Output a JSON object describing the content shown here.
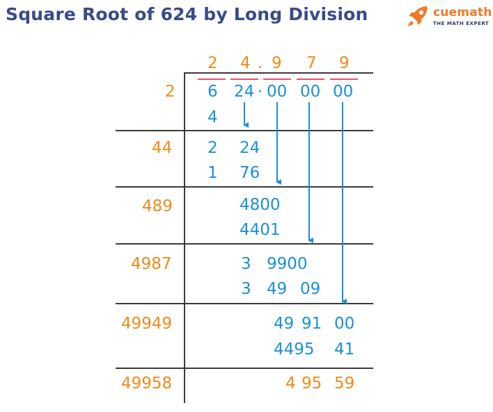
{
  "title": "Square Root of 624 by Long Division",
  "logo": {
    "word": "cuemath",
    "tagline": "THE MATH EXPERT",
    "icon": "rocket-icon"
  },
  "colors": {
    "quotient": "#ef8a1a",
    "divisor": "#ef8a1a",
    "work": "#1a90d6",
    "bar": "#e8506e",
    "title": "#3a4a8a",
    "lines": "#3a3a3a"
  },
  "quotient": [
    "2",
    "4",
    ".",
    "9",
    "7",
    "9"
  ],
  "dividend": {
    "groups": [
      "6",
      "24",
      "00",
      "00",
      "00"
    ],
    "decimal_point": "·"
  },
  "steps": [
    {
      "divisor": "2",
      "subtract": [
        "4"
      ]
    },
    {
      "divisor": "44",
      "remainder": [
        "2",
        "24"
      ],
      "subtract": [
        "1",
        "76"
      ]
    },
    {
      "divisor": "489",
      "remainder": [
        "4800"
      ],
      "subtract": [
        "4401"
      ]
    },
    {
      "divisor": "4987",
      "remainder": [
        "3",
        "9900"
      ],
      "subtract": [
        "3",
        "49",
        "09"
      ]
    },
    {
      "divisor": "49949",
      "remainder": [
        "49",
        "91",
        "00"
      ],
      "subtract": [
        "4495",
        "41"
      ]
    },
    {
      "divisor": "49958",
      "remainder": [
        "4",
        "95",
        "59"
      ]
    }
  ]
}
